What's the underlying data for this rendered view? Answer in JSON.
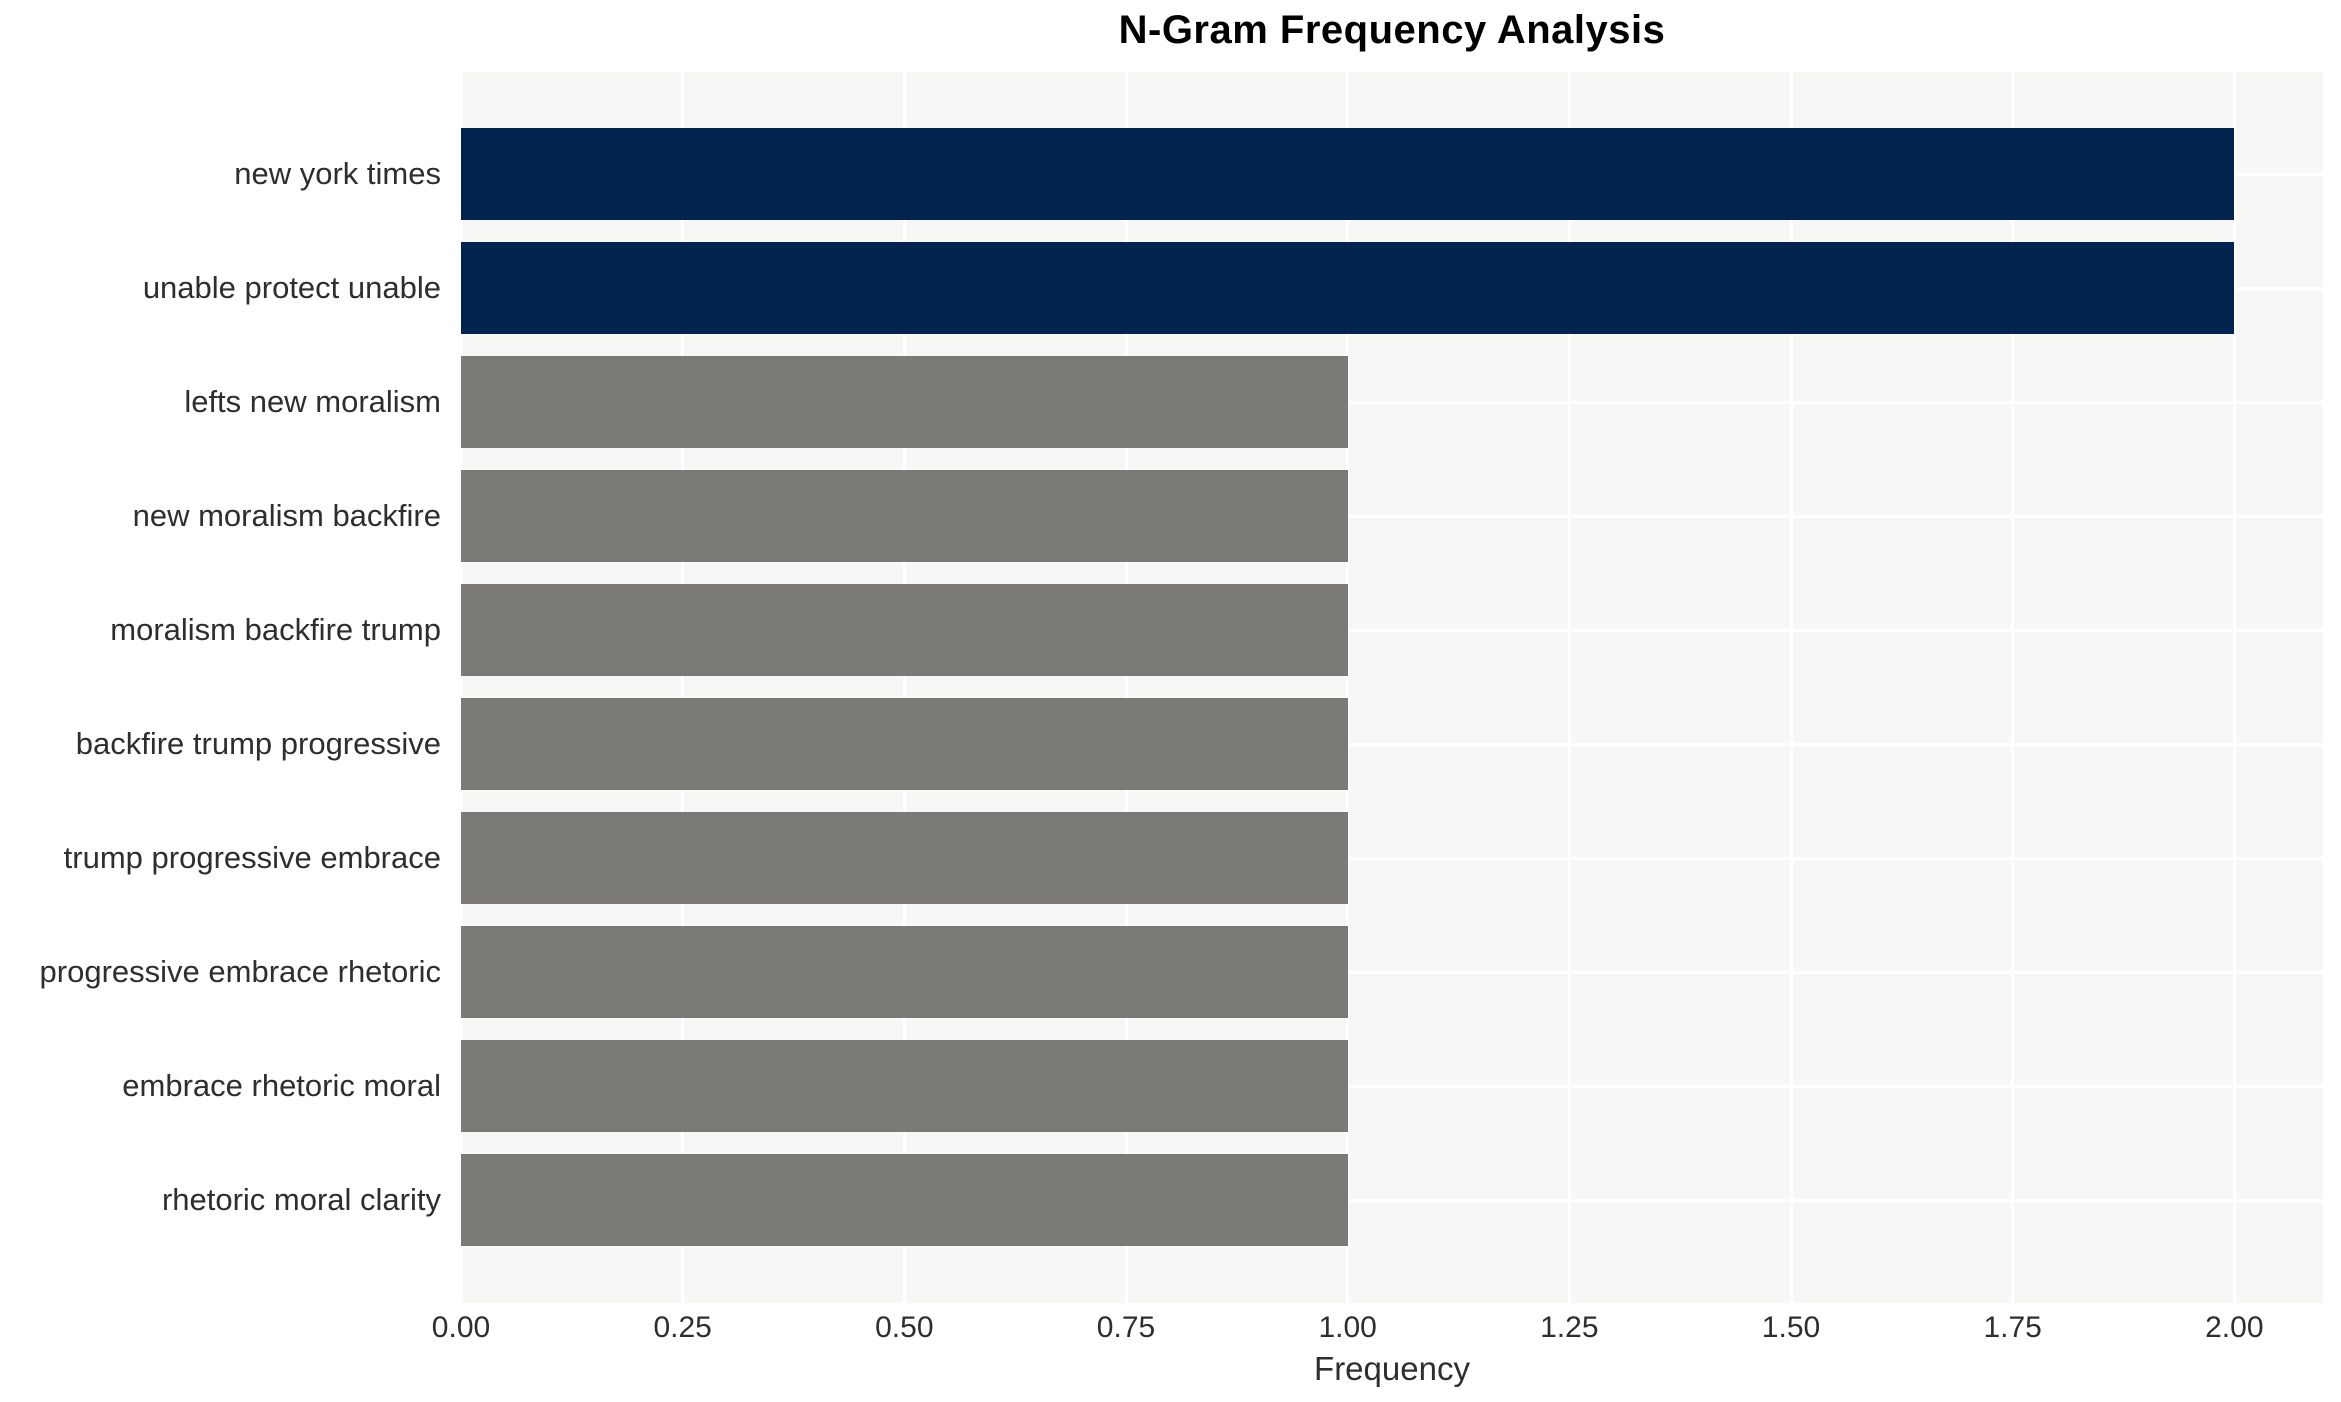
{
  "chart_data": {
    "type": "bar",
    "orientation": "horizontal",
    "title": "N-Gram Frequency Analysis",
    "xlabel": "Frequency",
    "ylabel": "",
    "categories": [
      "new york times",
      "unable protect unable",
      "lefts new moralism",
      "new moralism backfire",
      "moralism backfire trump",
      "backfire trump progressive",
      "trump progressive embrace",
      "progressive embrace rhetoric",
      "embrace rhetoric moral",
      "rhetoric moral clarity"
    ],
    "values": [
      2,
      2,
      1,
      1,
      1,
      1,
      1,
      1,
      1,
      1
    ],
    "xlim": [
      0,
      2.1
    ],
    "xticks": [
      0,
      0.25,
      0.5,
      0.75,
      1,
      1.25,
      1.5,
      1.75,
      2
    ],
    "xtick_labels": [
      "0.00",
      "0.25",
      "0.50",
      "0.75",
      "1.00",
      "1.25",
      "1.50",
      "1.75",
      "2.00"
    ],
    "grid": true,
    "legend": "none",
    "colors": {
      "bar_colors": [
        "#02234d",
        "#02234d",
        "#7b7a76",
        "#7b7a76",
        "#7b7a76",
        "#7b7a76",
        "#7b7a76",
        "#7b7a76",
        "#7b7a76",
        "#7b7a76"
      ],
      "bar_highlight": "#02234d",
      "bar_default": "#7b7a76",
      "plot_background": "#f7f7f6",
      "gridline": "#ffffff",
      "title_text": "#000000",
      "tick_text": "#2e2e2e",
      "axis_label_text": "#2e2e2e"
    }
  }
}
